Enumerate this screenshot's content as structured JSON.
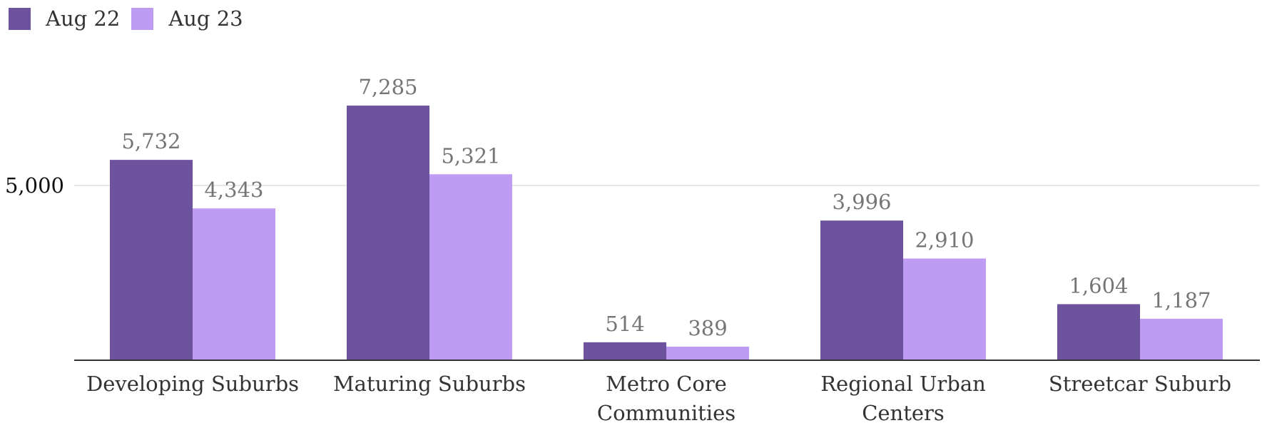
{
  "chart_data": {
    "type": "bar",
    "categories": [
      [
        "Developing Suburbs"
      ],
      [
        "Maturing Suburbs"
      ],
      [
        "Metro Core",
        "Communities"
      ],
      [
        "Regional Urban",
        "Centers"
      ],
      [
        "Streetcar Suburb"
      ]
    ],
    "series": [
      {
        "name": "Aug 22",
        "color": "#6d529d",
        "values": [
          5732,
          7285,
          514,
          3996,
          1604
        ],
        "labels": [
          "5,732",
          "7,285",
          "514",
          "3,996",
          "1,604"
        ]
      },
      {
        "name": "Aug 23",
        "color": "#be9cf4",
        "values": [
          4343,
          5321,
          389,
          2910,
          1187
        ],
        "labels": [
          "4,343",
          "5,321",
          "389",
          "2,910",
          "1,187"
        ]
      }
    ],
    "yticks": [
      {
        "value": 5000,
        "label": "5,000"
      }
    ],
    "ylim": [
      0,
      8700
    ],
    "grid": true,
    "legend_position": "top-left",
    "gridline_color": "#e0e0e0",
    "axis_color": "#333333"
  }
}
